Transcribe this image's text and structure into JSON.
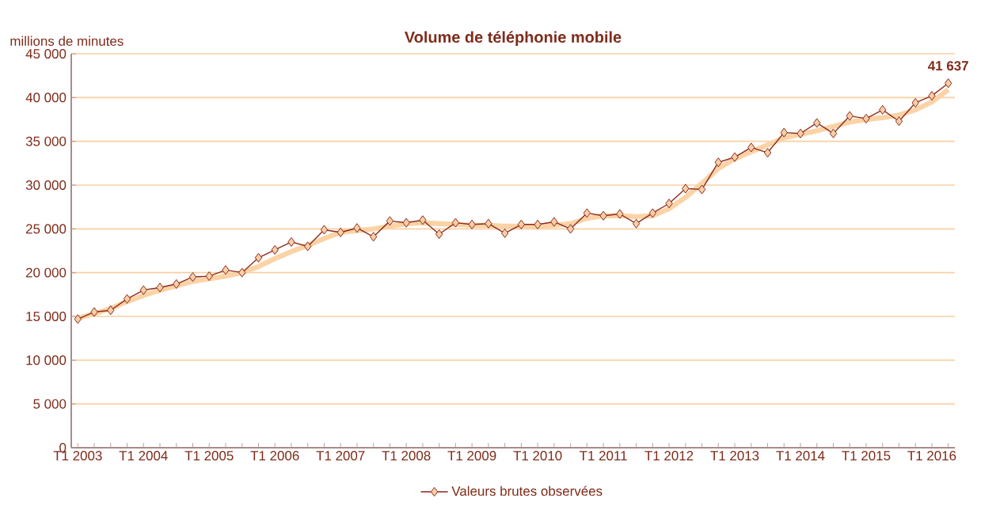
{
  "chart_data": {
    "type": "line",
    "title": "Volume de téléphonie mobile",
    "ylabel": "millions de minutes",
    "categories": [
      "T1 2003",
      null,
      null,
      null,
      "T1 2004",
      null,
      null,
      null,
      "T1 2005",
      null,
      null,
      null,
      "T1 2006",
      null,
      null,
      null,
      "T1 2007",
      null,
      null,
      null,
      "T1 2008",
      null,
      null,
      null,
      "T1 2009",
      null,
      null,
      null,
      "T1 2010",
      null,
      null,
      null,
      "T1 2011",
      null,
      null,
      null,
      "T1 2012",
      null,
      null,
      null,
      "T1 2013",
      null,
      null,
      null,
      "T1 2014",
      null,
      null,
      null,
      "T1 2015",
      null,
      null,
      null,
      "T1 2016",
      null
    ],
    "series": [
      {
        "color": "#fbd3a6",
        "marker": "none",
        "values": [
          14800,
          15300,
          15900,
          16700,
          17400,
          18000,
          18500,
          19000,
          19300,
          19600,
          20000,
          20700,
          21600,
          22400,
          23100,
          23900,
          24600,
          24800,
          25000,
          25300,
          25600,
          25700,
          25600,
          25500,
          25400,
          25400,
          25300,
          25300,
          25300,
          25400,
          25600,
          26200,
          26500,
          26500,
          26400,
          26500,
          27300,
          28600,
          30200,
          31900,
          33000,
          33800,
          34600,
          35400,
          35800,
          36200,
          36700,
          37200,
          37500,
          37700,
          38000,
          38600,
          39500,
          40900
        ]
      },
      {
        "name": "Valeurs brutes observées",
        "color": "#8b2a1a",
        "values": [
          14700,
          15500,
          15700,
          17000,
          18000,
          18300,
          18700,
          19500,
          19600,
          20300,
          20000,
          21700,
          22600,
          23500,
          23000,
          24900,
          24600,
          25100,
          24100,
          25900,
          25700,
          26000,
          24400,
          25700,
          25500,
          25600,
          24500,
          25500,
          25500,
          25800,
          25000,
          26800,
          26500,
          26700,
          25600,
          26800,
          27900,
          29600,
          29500,
          32600,
          33200,
          34300,
          33700,
          36000,
          35900,
          37100,
          35900,
          37900,
          37600,
          38600,
          37300,
          39400,
          40200,
          41637
        ],
        "value_labels": [
          null,
          null,
          null,
          null,
          null,
          null,
          null,
          null,
          null,
          null,
          null,
          null,
          null,
          null,
          null,
          null,
          null,
          null,
          null,
          null,
          null,
          null,
          null,
          null,
          null,
          null,
          null,
          null,
          null,
          null,
          null,
          null,
          null,
          null,
          null,
          null,
          null,
          null,
          null,
          null,
          null,
          null,
          null,
          null,
          null,
          null,
          null,
          null,
          null,
          null,
          null,
          null,
          null,
          "41 637"
        ]
      }
    ],
    "ylim": [
      0,
      45000
    ],
    "yticks": [
      {
        "value": 0,
        "label": "0"
      },
      {
        "value": 5000,
        "label": "5 000"
      },
      {
        "value": 10000,
        "label": "10 000"
      },
      {
        "value": 15000,
        "label": "15 000"
      },
      {
        "value": 20000,
        "label": "20 000"
      },
      {
        "value": 25000,
        "label": "25 000"
      },
      {
        "value": 30000,
        "label": "30 000"
      },
      {
        "value": 35000,
        "label": "35 000"
      },
      {
        "value": 40000,
        "label": "40 000"
      },
      {
        "value": 45000,
        "label": "45 000"
      }
    ],
    "grid": "y",
    "legend": "bottom",
    "marker": "diamond",
    "line_style": "solid"
  }
}
